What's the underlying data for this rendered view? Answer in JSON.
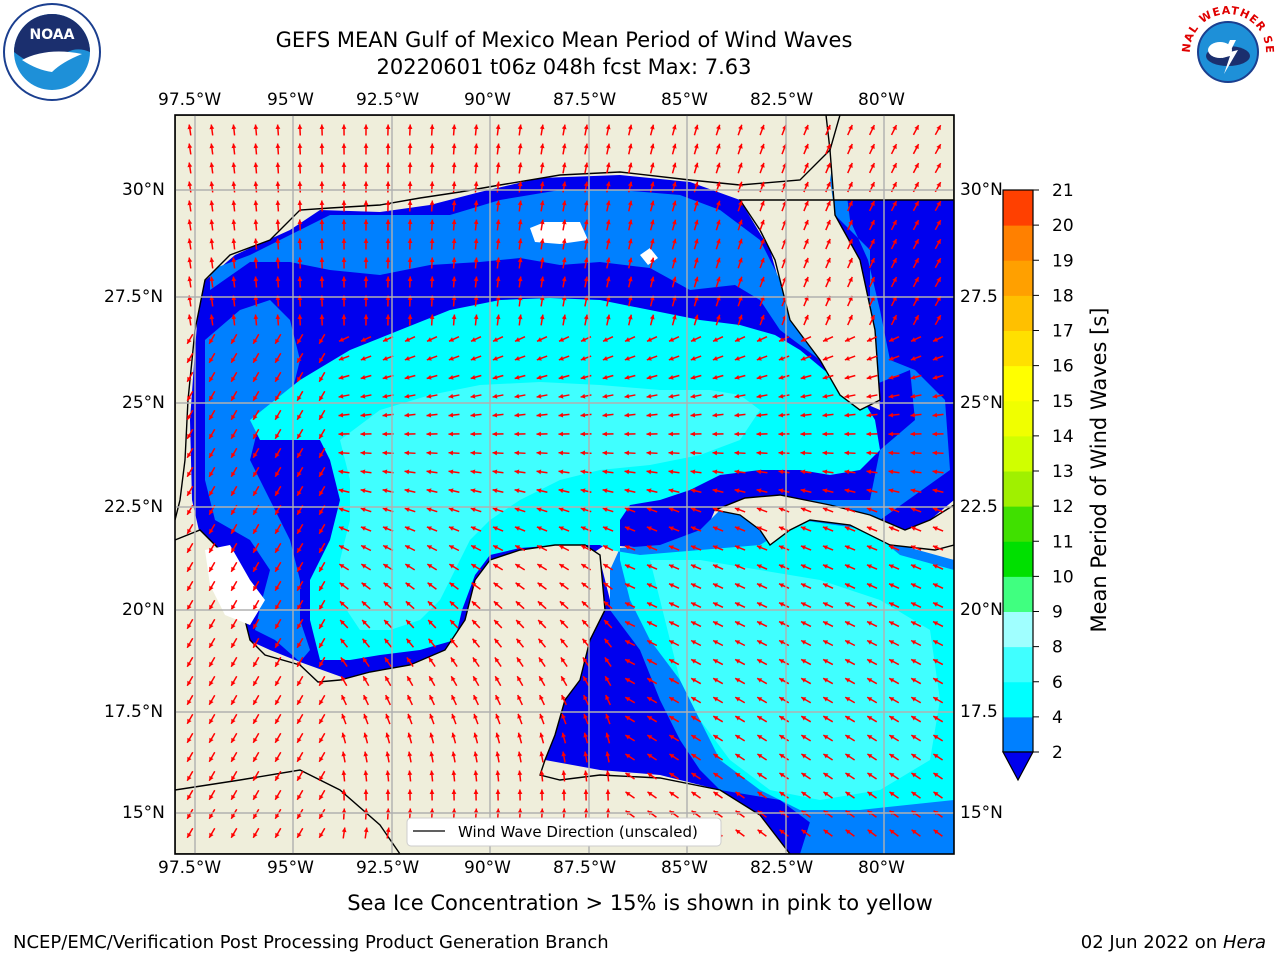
{
  "header": {
    "title_line1": "GEFS MEAN Gulf of Mexico Mean Period of Wind Waves",
    "title_line2": "20220601 t06z 048h fcst   Max: 7.63"
  },
  "logos": {
    "left": "NOAA",
    "right": "NATIONAL WEATHER SERVICE"
  },
  "map": {
    "lon_labels": [
      "97.5°W",
      "95°W",
      "92.5°W",
      "90°W",
      "87.5°W",
      "85°W",
      "82.5°W",
      "80°W"
    ],
    "lat_labels": [
      "30°N",
      "27.5°N",
      "25°N",
      "22.5°N",
      "20°N",
      "17.5°N",
      "15°N"
    ],
    "lat_labels_right": [
      "30°N",
      "27.5",
      "25°N",
      "22.5",
      "20°N",
      "17.5",
      "15°N"
    ],
    "legend_label": "Wind Wave Direction (unscaled)",
    "colors": {
      "land": "#efeedb",
      "level_lt2": "#0000ee",
      "level_2_4": "#0080ff",
      "level_4_6": "#00ffff",
      "level_6_8": "#40ffff",
      "arrow": "#ff0000"
    }
  },
  "colorbar": {
    "label": "Mean Period of Wind Waves [s]",
    "ticks": [
      "2",
      "4",
      "6",
      "8",
      "9",
      "10",
      "11",
      "12",
      "13",
      "14",
      "15",
      "16",
      "17",
      "18",
      "19",
      "20",
      "21"
    ],
    "colors": [
      "#0080ff",
      "#00ffff",
      "#40ffff",
      "#a0ffff",
      "#40ff80",
      "#00e000",
      "#40e000",
      "#a0f000",
      "#d0ff00",
      "#f0ff00",
      "#ffff00",
      "#ffe000",
      "#ffc000",
      "#ffa000",
      "#ff8000",
      "#ff4000",
      "#ff0000"
    ],
    "below_color": "#0000ee"
  },
  "caption": "Sea Ice Concentration > 15% is shown in pink to yellow",
  "footer": {
    "left": "NCEP/EMC/Verification Post Processing Product Generation Branch",
    "date": "02 Jun 2022 on ",
    "machine": "Hera"
  }
}
